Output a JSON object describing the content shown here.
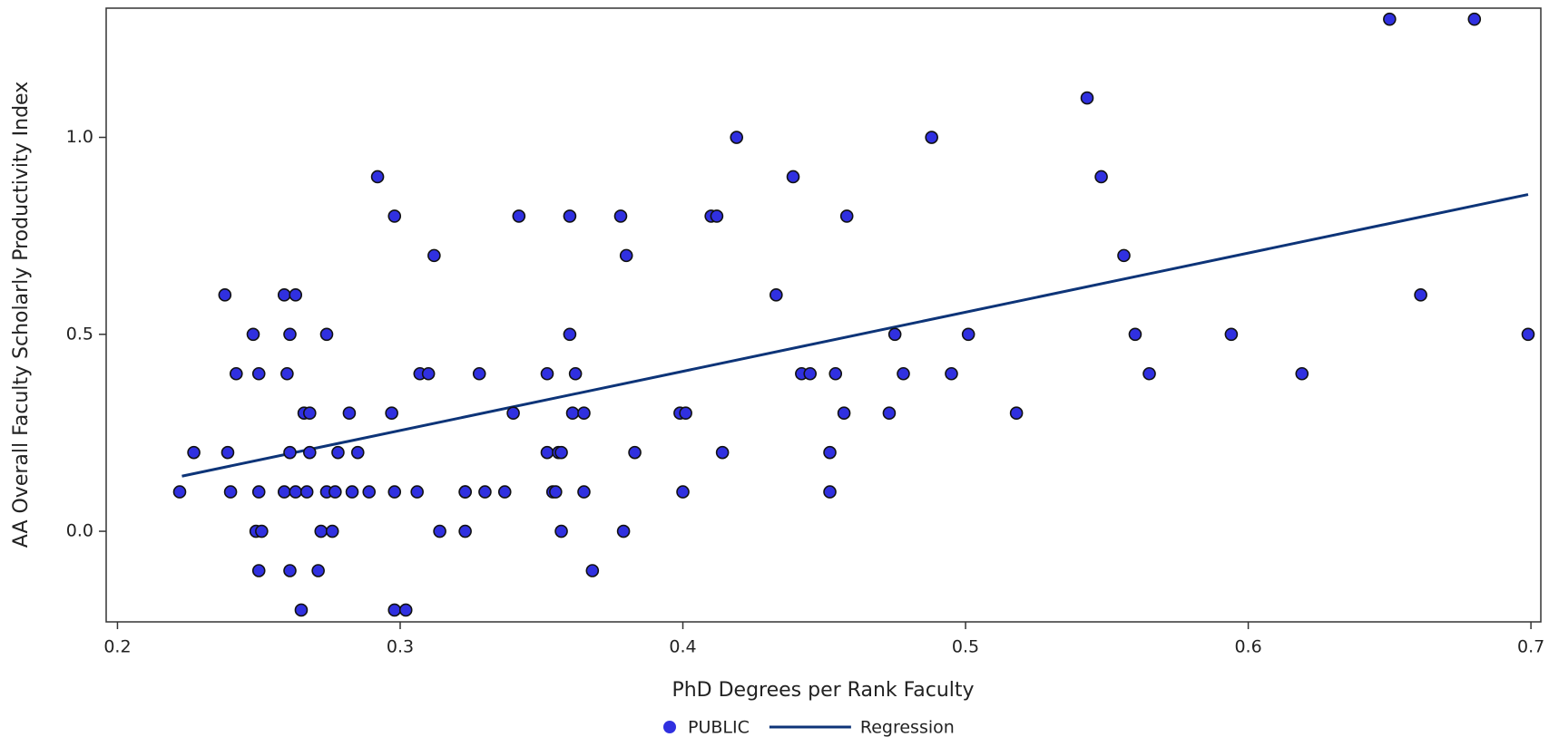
{
  "chart_data": {
    "type": "scatter",
    "xlabel": "PhD Degrees per Rank Faculty",
    "ylabel": "AA Overall Faculty Scholarly Productivity Index",
    "xlim": [
      0.196,
      0.7035
    ],
    "ylim": [
      -0.23,
      1.328
    ],
    "xticks": [
      0.2,
      0.3,
      0.4,
      0.5,
      0.6,
      0.7
    ],
    "yticks": [
      {
        "value": 0,
        "label": "0.0"
      },
      0.5,
      {
        "value": 1,
        "label": "1.0"
      }
    ],
    "grid": false,
    "legend": "bottom",
    "series": [
      {
        "name": "PUBLIC",
        "type": "scatter",
        "color": "#3030e0",
        "x": [
          0.65,
          0.68,
          0.543,
          0.419,
          0.488,
          0.292,
          0.439,
          0.548,
          0.298,
          0.342,
          0.36,
          0.378,
          0.41,
          0.412,
          0.458,
          0.312,
          0.38,
          0.556,
          0.238,
          0.259,
          0.263,
          0.433,
          0.661,
          0.248,
          0.261,
          0.274,
          0.36,
          0.475,
          0.501,
          0.56,
          0.594,
          0.699,
          0.242,
          0.25,
          0.26,
          0.307,
          0.31,
          0.328,
          0.352,
          0.362,
          0.442,
          0.445,
          0.454,
          0.478,
          0.495,
          0.565,
          0.619,
          0.266,
          0.268,
          0.282,
          0.297,
          0.34,
          0.361,
          0.365,
          0.399,
          0.401,
          0.457,
          0.473,
          0.518,
          0.227,
          0.239,
          0.261,
          0.268,
          0.278,
          0.285,
          0.352,
          0.356,
          0.357,
          0.383,
          0.414,
          0.452,
          0.222,
          0.24,
          0.25,
          0.259,
          0.263,
          0.267,
          0.274,
          0.277,
          0.283,
          0.289,
          0.298,
          0.306,
          0.323,
          0.323,
          0.33,
          0.337,
          0.354,
          0.355,
          0.365,
          0.4,
          0.452,
          0.249,
          0.251,
          0.272,
          0.276,
          0.314,
          0.323,
          0.357,
          0.379,
          0.25,
          0.261,
          0.271,
          0.368,
          0.265,
          0.298,
          0.302
        ],
        "values": [
          1.3,
          1.3,
          1.1,
          1.0,
          1.0,
          0.9,
          0.9,
          0.9,
          0.8,
          0.8,
          0.8,
          0.8,
          0.8,
          0.8,
          0.8,
          0.7,
          0.7,
          0.7,
          0.6,
          0.6,
          0.6,
          0.6,
          0.6,
          0.5,
          0.5,
          0.5,
          0.5,
          0.5,
          0.5,
          0.5,
          0.5,
          0.5,
          0.4,
          0.4,
          0.4,
          0.4,
          0.4,
          0.4,
          0.4,
          0.4,
          0.4,
          0.4,
          0.4,
          0.4,
          0.4,
          0.4,
          0.4,
          0.3,
          0.3,
          0.3,
          0.3,
          0.3,
          0.3,
          0.3,
          0.3,
          0.3,
          0.3,
          0.3,
          0.3,
          0.2,
          0.2,
          0.2,
          0.2,
          0.2,
          0.2,
          0.2,
          0.2,
          0.2,
          0.2,
          0.2,
          0.2,
          0.1,
          0.1,
          0.1,
          0.1,
          0.1,
          0.1,
          0.1,
          0.1,
          0.1,
          0.1,
          0.1,
          0.1,
          0.1,
          0.1,
          0.1,
          0.1,
          0.1,
          0.1,
          0.1,
          0.1,
          0.1,
          0,
          0,
          0,
          0,
          0,
          0,
          0,
          0,
          -0.1,
          -0.1,
          -0.1,
          -0.1,
          -0.2,
          -0.2,
          -0.2
        ]
      },
      {
        "name": "Regression",
        "type": "line",
        "color": "#0d3478",
        "x": [
          0.2228,
          0.699
        ],
        "values": [
          0.14,
          0.855
        ]
      }
    ]
  }
}
